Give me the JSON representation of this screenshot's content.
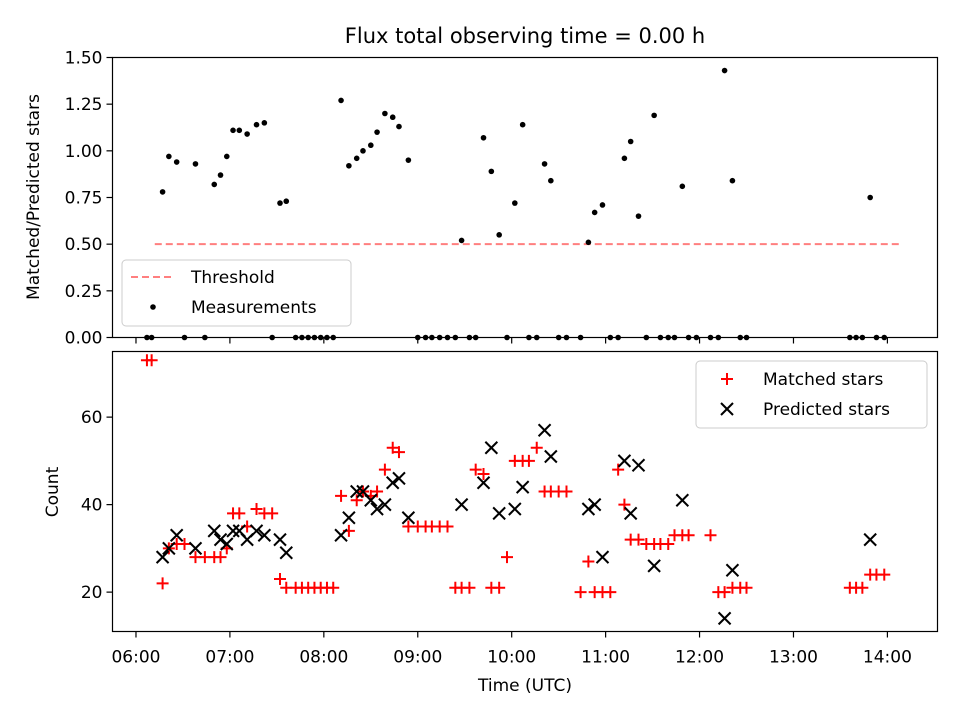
{
  "figure_title": "Flux total observing time = 0.00 h",
  "colors": {
    "threshold": "#ff7f7f",
    "matched": "#ff0000",
    "predicted": "#000000",
    "measurements": "#000000"
  },
  "chart_data": [
    {
      "type": "scatter",
      "title": "Flux total observing time = 0.00 h",
      "xlabel": "",
      "ylabel": "Matched/Predicted stars",
      "xlim": [
        "05:45",
        "14:32"
      ],
      "ylim": [
        0,
        1.5
      ],
      "yticks": [
        "0.00",
        "0.25",
        "0.50",
        "0.75",
        "1.00",
        "1.25",
        "1.50"
      ],
      "legend": {
        "position": "lower-left",
        "entries": [
          {
            "label": "Threshold",
            "style": "dashed-line"
          },
          {
            "label": "Measurements",
            "style": "dot"
          }
        ]
      },
      "threshold": {
        "name": "Threshold",
        "y": 0.5,
        "x_start": "06:12",
        "x_end": "14:08"
      },
      "series": [
        {
          "name": "Measurements",
          "style": "dot",
          "points": [
            [
              "06:07",
              0
            ],
            [
              "06:10",
              0
            ],
            [
              "06:17",
              0.78
            ],
            [
              "06:21",
              0.97
            ],
            [
              "06:26",
              0.94
            ],
            [
              "06:31",
              0
            ],
            [
              "06:38",
              0.93
            ],
            [
              "06:44",
              0
            ],
            [
              "06:50",
              0.82
            ],
            [
              "06:54",
              0.87
            ],
            [
              "06:58",
              0.97
            ],
            [
              "07:02",
              1.11
            ],
            [
              "07:06",
              1.11
            ],
            [
              "07:11",
              1.09
            ],
            [
              "07:17",
              1.14
            ],
            [
              "07:22",
              1.15
            ],
            [
              "07:27",
              0
            ],
            [
              "07:32",
              0.72
            ],
            [
              "07:36",
              0.73
            ],
            [
              "07:42",
              0
            ],
            [
              "07:46",
              0
            ],
            [
              "07:50",
              0
            ],
            [
              "07:54",
              0
            ],
            [
              "07:58",
              0
            ],
            [
              "08:02",
              0
            ],
            [
              "08:06",
              0
            ],
            [
              "08:11",
              1.27
            ],
            [
              "08:16",
              0.92
            ],
            [
              "08:21",
              0.96
            ],
            [
              "08:25",
              1.0
            ],
            [
              "08:30",
              1.03
            ],
            [
              "08:34",
              1.1
            ],
            [
              "08:39",
              1.2
            ],
            [
              "08:44",
              1.18
            ],
            [
              "08:48",
              1.13
            ],
            [
              "08:54",
              0.95
            ],
            [
              "09:00",
              0
            ],
            [
              "09:05",
              0
            ],
            [
              "09:09",
              0
            ],
            [
              "09:14",
              0
            ],
            [
              "09:19",
              0
            ],
            [
              "09:24",
              0
            ],
            [
              "09:28",
              0.52
            ],
            [
              "09:33",
              0
            ],
            [
              "09:37",
              0
            ],
            [
              "09:42",
              1.07
            ],
            [
              "09:47",
              0.89
            ],
            [
              "09:52",
              0.55
            ],
            [
              "09:57",
              0
            ],
            [
              "10:02",
              0.72
            ],
            [
              "10:07",
              1.14
            ],
            [
              "10:11",
              0
            ],
            [
              "10:16",
              0
            ],
            [
              "10:21",
              0.93
            ],
            [
              "10:25",
              0.84
            ],
            [
              "10:30",
              0
            ],
            [
              "10:35",
              0
            ],
            [
              "10:44",
              0
            ],
            [
              "10:49",
              0.51
            ],
            [
              "10:53",
              0.67
            ],
            [
              "10:58",
              0.71
            ],
            [
              "11:03",
              0
            ],
            [
              "11:08",
              0
            ],
            [
              "11:12",
              0.96
            ],
            [
              "11:16",
              1.05
            ],
            [
              "11:21",
              0.65
            ],
            [
              "11:26",
              0
            ],
            [
              "11:31",
              1.19
            ],
            [
              "11:35",
              0
            ],
            [
              "11:40",
              0
            ],
            [
              "11:44",
              0
            ],
            [
              "11:49",
              0.81
            ],
            [
              "11:53",
              0
            ],
            [
              "11:58",
              0
            ],
            [
              "12:07",
              0
            ],
            [
              "12:12",
              0
            ],
            [
              "12:16",
              1.43
            ],
            [
              "12:21",
              0.84
            ],
            [
              "12:26",
              0
            ],
            [
              "12:30",
              0
            ],
            [
              "13:36",
              0
            ],
            [
              "13:40",
              0
            ],
            [
              "13:44",
              0
            ],
            [
              "13:49",
              0.75
            ],
            [
              "13:53",
              0
            ],
            [
              "13:58",
              0
            ]
          ]
        }
      ]
    },
    {
      "type": "scatter",
      "xlabel": "Time (UTC)",
      "ylabel": "Count",
      "xlim": [
        "05:45",
        "14:32"
      ],
      "ylim": [
        11,
        75
      ],
      "xticks": [
        "06:00",
        "07:00",
        "08:00",
        "09:00",
        "10:00",
        "11:00",
        "12:00",
        "13:00",
        "14:00"
      ],
      "yticks": [
        "20",
        "40",
        "60"
      ],
      "legend": {
        "position": "upper-right",
        "entries": [
          {
            "label": "Matched stars",
            "style": "plus"
          },
          {
            "label": "Predicted stars",
            "style": "x"
          }
        ]
      },
      "series": [
        {
          "name": "Matched stars",
          "style": "plus",
          "points": [
            [
              "06:07",
              73
            ],
            [
              "06:10",
              73
            ],
            [
              "06:17",
              22
            ],
            [
              "06:21",
              30
            ],
            [
              "06:26",
              31
            ],
            [
              "06:31",
              31
            ],
            [
              "06:38",
              28
            ],
            [
              "06:44",
              28
            ],
            [
              "06:50",
              28
            ],
            [
              "06:54",
              28
            ],
            [
              "06:58",
              30
            ],
            [
              "07:02",
              38
            ],
            [
              "07:06",
              38
            ],
            [
              "07:11",
              35
            ],
            [
              "07:17",
              39
            ],
            [
              "07:22",
              38
            ],
            [
              "07:27",
              38
            ],
            [
              "07:32",
              23
            ],
            [
              "07:36",
              21
            ],
            [
              "07:42",
              21
            ],
            [
              "07:46",
              21
            ],
            [
              "07:50",
              21
            ],
            [
              "07:54",
              21
            ],
            [
              "07:58",
              21
            ],
            [
              "08:02",
              21
            ],
            [
              "08:06",
              21
            ],
            [
              "08:11",
              42
            ],
            [
              "08:16",
              34
            ],
            [
              "08:21",
              41
            ],
            [
              "08:25",
              43
            ],
            [
              "08:30",
              42
            ],
            [
              "08:34",
              43
            ],
            [
              "08:39",
              48
            ],
            [
              "08:44",
              53
            ],
            [
              "08:48",
              52
            ],
            [
              "08:54",
              35
            ],
            [
              "09:00",
              35
            ],
            [
              "09:05",
              35
            ],
            [
              "09:09",
              35
            ],
            [
              "09:14",
              35
            ],
            [
              "09:19",
              35
            ],
            [
              "09:24",
              21
            ],
            [
              "09:28",
              21
            ],
            [
              "09:33",
              21
            ],
            [
              "09:37",
              48
            ],
            [
              "09:42",
              47
            ],
            [
              "09:47",
              21
            ],
            [
              "09:52",
              21
            ],
            [
              "09:57",
              28
            ],
            [
              "10:02",
              50
            ],
            [
              "10:07",
              50
            ],
            [
              "10:11",
              50
            ],
            [
              "10:16",
              53
            ],
            [
              "10:21",
              43
            ],
            [
              "10:25",
              43
            ],
            [
              "10:30",
              43
            ],
            [
              "10:35",
              43
            ],
            [
              "10:44",
              20
            ],
            [
              "10:49",
              27
            ],
            [
              "10:53",
              20
            ],
            [
              "10:58",
              20
            ],
            [
              "11:03",
              20
            ],
            [
              "11:08",
              48
            ],
            [
              "11:12",
              40
            ],
            [
              "11:16",
              32
            ],
            [
              "11:21",
              32
            ],
            [
              "11:26",
              31
            ],
            [
              "11:31",
              31
            ],
            [
              "11:35",
              31
            ],
            [
              "11:40",
              31
            ],
            [
              "11:44",
              33
            ],
            [
              "11:49",
              33
            ],
            [
              "11:53",
              33
            ],
            [
              "12:07",
              33
            ],
            [
              "12:12",
              20
            ],
            [
              "12:16",
              20
            ],
            [
              "12:21",
              21
            ],
            [
              "12:26",
              21
            ],
            [
              "12:30",
              21
            ],
            [
              "13:36",
              21
            ],
            [
              "13:40",
              21
            ],
            [
              "13:44",
              21
            ],
            [
              "13:49",
              24
            ],
            [
              "13:53",
              24
            ],
            [
              "13:58",
              24
            ]
          ]
        },
        {
          "name": "Predicted stars",
          "style": "x",
          "points": [
            [
              "06:17",
              28
            ],
            [
              "06:21",
              30
            ],
            [
              "06:26",
              33
            ],
            [
              "06:38",
              30
            ],
            [
              "06:50",
              34
            ],
            [
              "06:54",
              32
            ],
            [
              "06:58",
              31
            ],
            [
              "07:02",
              34
            ],
            [
              "07:06",
              34
            ],
            [
              "07:11",
              32
            ],
            [
              "07:17",
              34
            ],
            [
              "07:22",
              33
            ],
            [
              "07:32",
              32
            ],
            [
              "07:36",
              29
            ],
            [
              "08:11",
              33
            ],
            [
              "08:16",
              37
            ],
            [
              "08:21",
              43
            ],
            [
              "08:25",
              43
            ],
            [
              "08:30",
              41
            ],
            [
              "08:34",
              39
            ],
            [
              "08:39",
              40
            ],
            [
              "08:44",
              45
            ],
            [
              "08:48",
              46
            ],
            [
              "08:54",
              37
            ],
            [
              "09:28",
              40
            ],
            [
              "09:42",
              45
            ],
            [
              "09:47",
              53
            ],
            [
              "09:52",
              38
            ],
            [
              "10:02",
              39
            ],
            [
              "10:07",
              44
            ],
            [
              "10:21",
              57
            ],
            [
              "10:25",
              51
            ],
            [
              "10:49",
              39
            ],
            [
              "10:53",
              40
            ],
            [
              "10:58",
              28
            ],
            [
              "11:12",
              50
            ],
            [
              "11:16",
              38
            ],
            [
              "11:21",
              49
            ],
            [
              "11:31",
              26
            ],
            [
              "11:49",
              41
            ],
            [
              "12:16",
              14
            ],
            [
              "12:21",
              25
            ],
            [
              "13:49",
              32
            ]
          ]
        }
      ]
    }
  ]
}
